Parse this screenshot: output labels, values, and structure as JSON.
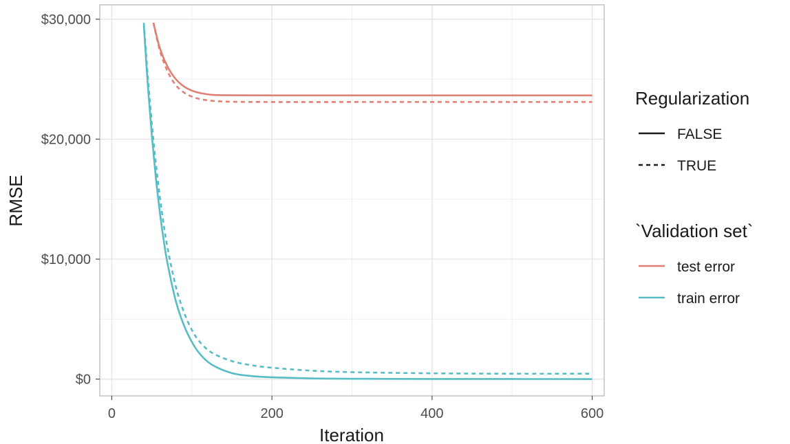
{
  "chart_data": {
    "type": "line",
    "xlabel": "Iteration",
    "ylabel": "RMSE",
    "xlim": [
      -15,
      615
    ],
    "ylim": [
      -1400,
      31200
    ],
    "x_ticks": [
      0,
      200,
      400,
      600
    ],
    "x_tick_labels": [
      "0",
      "200",
      "400",
      "600"
    ],
    "y_ticks": [
      0,
      10000,
      20000,
      30000
    ],
    "y_tick_labels": [
      "$0",
      "$10,000",
      "$20,000",
      "$30,000"
    ],
    "grid": true,
    "legend_position": "right",
    "legends": [
      {
        "title": "Regularization",
        "entries": [
          {
            "label": "FALSE",
            "linetype": "solid"
          },
          {
            "label": "TRUE",
            "linetype": "dashed"
          }
        ]
      },
      {
        "title": "`Validation set`",
        "entries": [
          {
            "label": "test error",
            "color": "#e07f74"
          },
          {
            "label": "train error",
            "color": "#56bdc4"
          }
        ]
      }
    ],
    "series": [
      {
        "validation_set": "test error",
        "regularization": "FALSE",
        "color": "#e07f74",
        "linetype": "solid",
        "x": [
          52,
          60,
          70,
          80,
          90,
          100,
          110,
          125,
          150,
          200,
          300,
          400,
          500,
          600
        ],
        "y": [
          29700,
          27600,
          26000,
          25000,
          24400,
          24050,
          23850,
          23700,
          23660,
          23650,
          23650,
          23650,
          23650,
          23650
        ]
      },
      {
        "validation_set": "test error",
        "regularization": "TRUE",
        "color": "#e07f74",
        "linetype": "dashed",
        "x": [
          52,
          60,
          70,
          80,
          90,
          100,
          110,
          125,
          150,
          200,
          300,
          400,
          500,
          600
        ],
        "y": [
          29700,
          27400,
          25600,
          24500,
          23900,
          23550,
          23350,
          23200,
          23120,
          23100,
          23100,
          23100,
          23100,
          23100
        ]
      },
      {
        "validation_set": "train error",
        "regularization": "FALSE",
        "color": "#56bdc4",
        "linetype": "solid",
        "x": [
          40,
          45,
          50,
          55,
          60,
          65,
          70,
          80,
          90,
          100,
          110,
          125,
          150,
          175,
          200,
          250,
          300,
          400,
          500,
          600
        ],
        "y": [
          29500,
          24500,
          20300,
          16800,
          13900,
          11500,
          9500,
          6500,
          4500,
          3100,
          2100,
          1200,
          500,
          250,
          150,
          60,
          30,
          10,
          5,
          0
        ]
      },
      {
        "validation_set": "train error",
        "regularization": "TRUE",
        "color": "#56bdc4",
        "linetype": "dashed",
        "x": [
          40,
          45,
          50,
          55,
          60,
          65,
          70,
          80,
          90,
          100,
          110,
          125,
          150,
          175,
          200,
          250,
          300,
          400,
          500,
          600
        ],
        "y": [
          29700,
          25200,
          21300,
          18000,
          15200,
          12800,
          10800,
          7700,
          5600,
          4100,
          3100,
          2200,
          1500,
          1150,
          950,
          700,
          580,
          480,
          450,
          450
        ]
      }
    ]
  }
}
